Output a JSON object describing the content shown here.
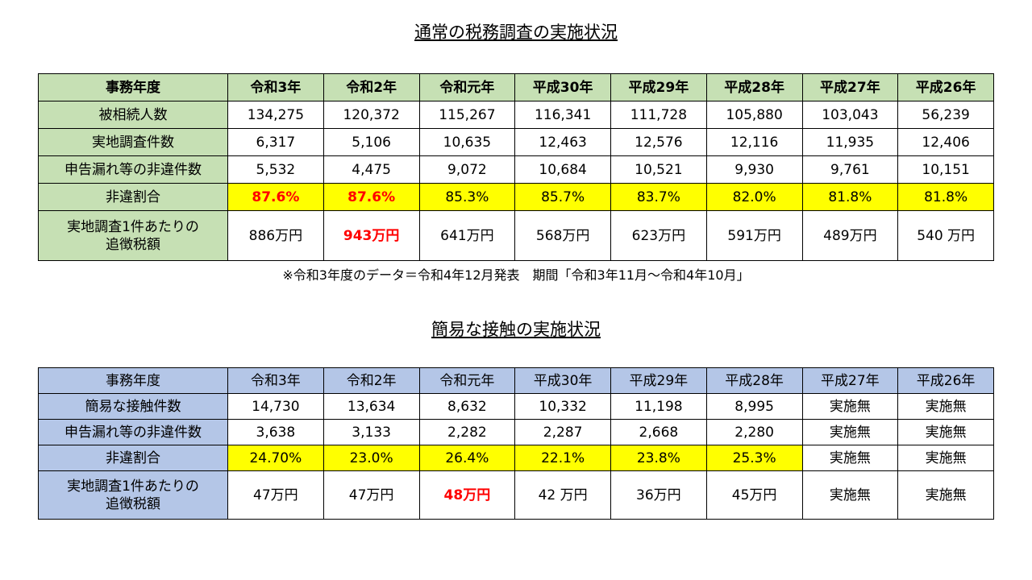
{
  "title1": "通常の税務調査の実施状況",
  "table1": {
    "header": [
      "事務年度",
      "令和3年",
      "令和2年",
      "令和元年",
      "平成30年",
      "平成29年",
      "平成28年",
      "平成27年",
      "平成26年"
    ],
    "rows": [
      [
        "被相続人数",
        "134,275",
        "120,372",
        "115,267",
        "116,341",
        "111,728",
        "105,880",
        "103,043",
        "56,239"
      ],
      [
        "実地調査件数",
        "6,317",
        "5,106",
        "10,635",
        "12,463",
        "12,576",
        "12,116",
        "11,935",
        "12,406"
      ],
      [
        "申告漏れ等の非違件数",
        "5,532",
        "4,475",
        "9,072",
        "10,684",
        "10,521",
        "9,930",
        "9,761",
        "10,151"
      ],
      [
        "非違割合",
        "87.6%",
        "87.6%",
        "85.3%",
        "85.7%",
        "83.7%",
        "82.0%",
        "81.8%",
        "81.8%"
      ],
      [
        "実地調査1件あたりの\n追徴税額",
        "886万円",
        "943万円",
        "641万円",
        "568万円",
        "623万円",
        "591万円",
        "489万円",
        "540 万円"
      ]
    ]
  },
  "note": "※令和3年度のデータ＝令和4年12月発表　期間「令和3年11月～令和4年10月」",
  "title2": "簡易な接触の実施状況",
  "table2": {
    "header": [
      "事務年度",
      "令和3年",
      "令和2年",
      "令和元年",
      "平成30年",
      "平成29年",
      "平成28年",
      "平成27年",
      "平成26年"
    ],
    "rows": [
      [
        "簡易な接触件数",
        "14,730",
        "13,634",
        "8,632",
        "10,332",
        "11,198",
        "8,995",
        "実施無",
        "実施無"
      ],
      [
        "申告漏れ等の非違件数",
        "3,638",
        "3,133",
        "2,282",
        "2,287",
        "2,668",
        "2,280",
        "実施無",
        "実施無"
      ],
      [
        "非違割合",
        "24.70%",
        "23.0%",
        "26.4%",
        "22.1%",
        "23.8%",
        "25.3%",
        "実施無",
        "実施無"
      ],
      [
        "実地調査1件あたりの\n追徴税額",
        "47万円",
        "47万円",
        "48万円",
        "42 万円",
        "36万円",
        "45万円",
        "実施無",
        "実施無"
      ]
    ]
  }
}
